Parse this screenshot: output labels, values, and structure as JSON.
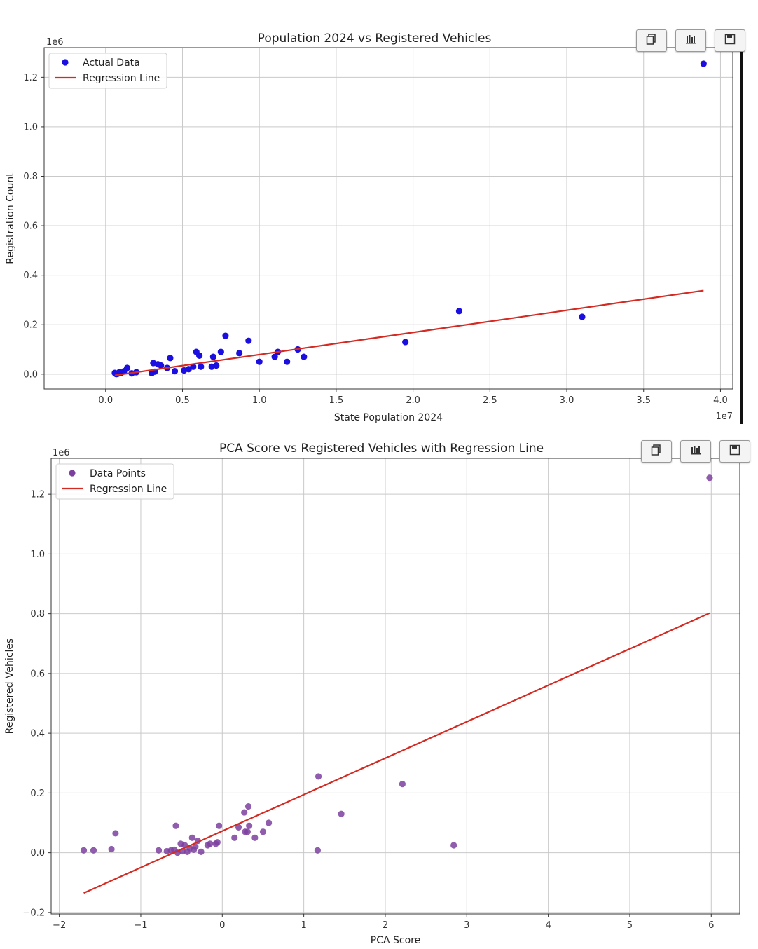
{
  "toolbar": {
    "buttons": [
      {
        "name": "copy-icon"
      },
      {
        "name": "chart-icon"
      },
      {
        "name": "save-icon"
      }
    ]
  },
  "chart_data": [
    {
      "type": "scatter",
      "title": "Population 2024 vs Registered Vehicles",
      "xlabel": "State Population 2024",
      "ylabel": "Registration Count",
      "x_offset_label": "1e7",
      "y_offset_label": "1e6",
      "xlim": [
        -0.4,
        4.08
      ],
      "ylim": [
        -0.06,
        1.32
      ],
      "xticks": [
        0.0,
        0.5,
        1.0,
        1.5,
        2.0,
        2.5,
        3.0,
        3.5,
        4.0
      ],
      "xtick_labels": [
        "0.0",
        "0.5",
        "1.0",
        "1.5",
        "2.0",
        "2.5",
        "3.0",
        "3.5",
        "4.0"
      ],
      "yticks": [
        0.0,
        0.2,
        0.4,
        0.6,
        0.8,
        1.0,
        1.2
      ],
      "ytick_labels": [
        "0.0",
        "0.2",
        "0.4",
        "0.6",
        "0.8",
        "1.0",
        "1.2"
      ],
      "grid": true,
      "legend_position": "top-left",
      "series": [
        {
          "name": "Actual Data",
          "kind": "scatter",
          "color": "#1a0fe0",
          "x": [
            0.06,
            0.07,
            0.08,
            0.09,
            0.1,
            0.12,
            0.14,
            0.17,
            0.2,
            0.3,
            0.31,
            0.32,
            0.34,
            0.36,
            0.4,
            0.42,
            0.45,
            0.51,
            0.54,
            0.57,
            0.59,
            0.61,
            0.62,
            0.69,
            0.7,
            0.72,
            0.75,
            0.78,
            0.87,
            0.93,
            1.0,
            1.1,
            1.12,
            1.18,
            1.25,
            1.29,
            1.95,
            2.3,
            3.1,
            3.89
          ],
          "y": [
            0.005,
            0.0,
            0.002,
            0.008,
            0.004,
            0.012,
            0.025,
            0.003,
            0.008,
            0.004,
            0.045,
            0.01,
            0.04,
            0.035,
            0.025,
            0.065,
            0.012,
            0.015,
            0.02,
            0.03,
            0.09,
            0.075,
            0.03,
            0.03,
            0.07,
            0.035,
            0.09,
            0.155,
            0.085,
            0.135,
            0.05,
            0.07,
            0.09,
            0.05,
            0.1,
            0.07,
            0.13,
            0.255,
            0.232,
            1.255
          ]
        },
        {
          "name": "Regression Line",
          "kind": "line",
          "color": "#d42a22",
          "x": [
            0.06,
            3.89
          ],
          "y": [
            -0.005,
            0.338
          ]
        }
      ]
    },
    {
      "type": "scatter",
      "title": "PCA Score vs Registered Vehicles with Regression Line",
      "xlabel": "PCA Score",
      "ylabel": "Registered Vehicles",
      "y_offset_label": "1e6",
      "xlim": [
        -2.1,
        6.35
      ],
      "ylim": [
        -0.205,
        1.32
      ],
      "xticks": [
        -2,
        -1,
        0,
        1,
        2,
        3,
        4,
        5,
        6
      ],
      "xtick_labels": [
        "−2",
        "−1",
        "0",
        "1",
        "2",
        "3",
        "4",
        "5",
        "6"
      ],
      "yticks": [
        -0.2,
        0.0,
        0.2,
        0.4,
        0.6,
        0.8,
        1.0,
        1.2
      ],
      "ytick_labels": [
        "−0.2",
        "0.0",
        "0.2",
        "0.4",
        "0.6",
        "0.8",
        "1.0",
        "1.2"
      ],
      "grid": true,
      "legend_position": "top-left",
      "series": [
        {
          "name": "Data Points",
          "kind": "scatter",
          "color": "#7d3f9f",
          "x": [
            -1.7,
            -1.58,
            -1.36,
            -1.31,
            -0.78,
            -0.68,
            -0.63,
            -0.59,
            -0.57,
            -0.55,
            -0.51,
            -0.49,
            -0.46,
            -0.43,
            -0.4,
            -0.37,
            -0.35,
            -0.33,
            -0.3,
            -0.26,
            -0.18,
            -0.15,
            -0.08,
            -0.06,
            -0.04,
            0.15,
            0.2,
            0.27,
            0.28,
            0.31,
            0.32,
            0.33,
            0.4,
            0.5,
            0.57,
            1.17,
            1.18,
            1.46,
            2.21,
            2.84,
            5.98
          ],
          "y": [
            0.008,
            0.008,
            0.012,
            0.065,
            0.008,
            0.005,
            0.008,
            0.01,
            0.09,
            0.0,
            0.03,
            0.005,
            0.025,
            0.003,
            0.015,
            0.05,
            0.01,
            0.02,
            0.04,
            0.003,
            0.025,
            0.03,
            0.03,
            0.035,
            0.09,
            0.05,
            0.085,
            0.135,
            0.07,
            0.07,
            0.155,
            0.09,
            0.05,
            0.07,
            0.1,
            0.008,
            0.255,
            0.13,
            0.23,
            0.025,
            1.255
          ]
        },
        {
          "name": "Regression Line",
          "kind": "line",
          "color": "#d42a22",
          "x": [
            -1.7,
            5.98
          ],
          "y": [
            -0.135,
            0.802
          ]
        }
      ]
    }
  ]
}
